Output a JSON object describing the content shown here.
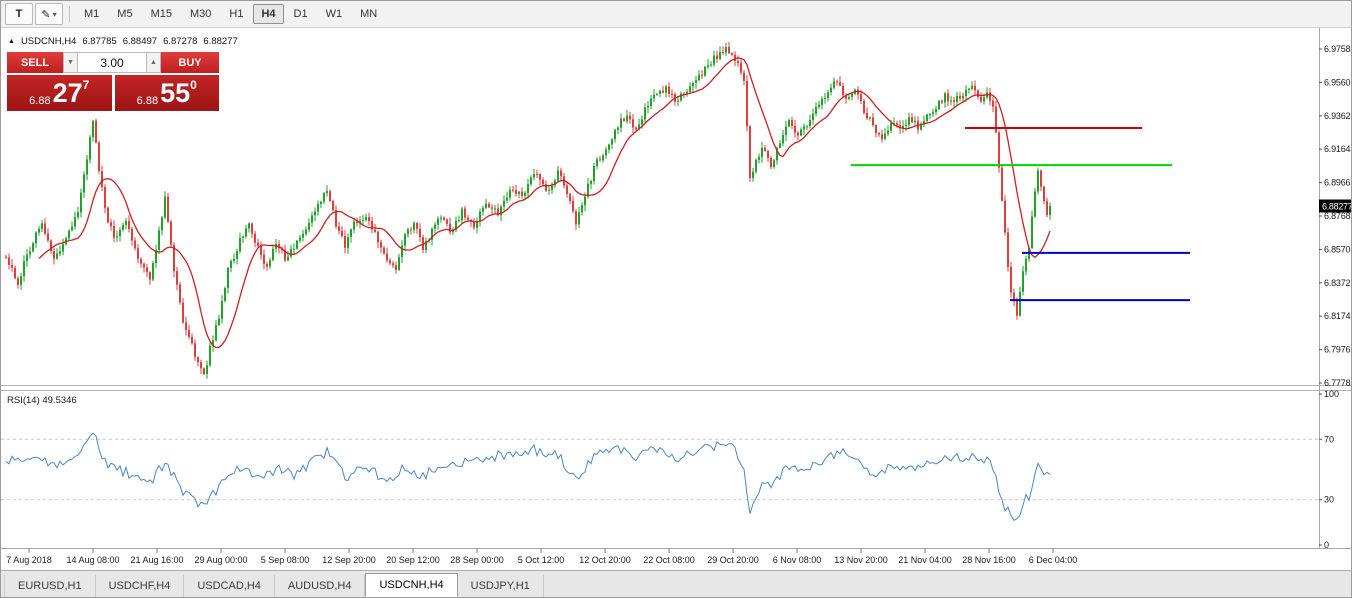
{
  "toolbar": {
    "text_tool_glyph": "T",
    "draw_tool_glyph": "✎",
    "dropdown_glyph": "▾",
    "timeframes": [
      "M1",
      "M5",
      "M15",
      "M30",
      "H1",
      "H4",
      "D1",
      "W1",
      "MN"
    ],
    "active_timeframe": "H4"
  },
  "chart": {
    "header": {
      "direction_arrow": "▲",
      "symbol": "USDCNH,H4",
      "open": "6.87785",
      "high": "6.88497",
      "low": "6.87278",
      "close": "6.88277"
    },
    "trade_panel": {
      "sell_label": "SELL",
      "buy_label": "BUY",
      "volume": "3.00",
      "spinner_down": "▼",
      "spinner_up": "▲",
      "sell_price": {
        "prefix": "6.88",
        "big": "27",
        "sup": "7"
      },
      "buy_price": {
        "prefix": "6.88",
        "big": "55",
        "sup": "0"
      }
    },
    "rsi_label": "RSI(14) 49.5346",
    "price_axis_current": "6.88277"
  },
  "chart_data": {
    "type": "candlestick",
    "symbol": "USDCNH",
    "timeframe": "H4",
    "current_ohlc": {
      "open": 6.87785,
      "high": 6.88497,
      "low": 6.87278,
      "close": 6.88277
    },
    "y_axis": {
      "ticks": [
        "6.97585",
        "6.95605",
        "6.93625",
        "6.91645",
        "6.89665",
        "6.87685",
        "6.85705",
        "6.83725",
        "6.81745",
        "6.79765",
        "6.77785"
      ]
    },
    "x_axis": {
      "labels": [
        "7 Aug 2018",
        "14 Aug 08:00",
        "21 Aug 16:00",
        "29 Aug 00:00",
        "5 Sep 08:00",
        "12 Sep 20:00",
        "20 Sep 12:00",
        "28 Sep 00:00",
        "5 Oct 12:00",
        "12 Oct 20:00",
        "22 Oct 08:00",
        "29 Oct 20:00",
        "6 Nov 08:00",
        "13 Nov 20:00",
        "21 Nov 04:00",
        "28 Nov 16:00",
        "6 Dec 04:00"
      ]
    },
    "candle_count": 349,
    "close_path_anchors": [
      [
        0,
        6.85
      ],
      [
        4,
        6.838
      ],
      [
        8,
        6.858
      ],
      [
        12,
        6.872
      ],
      [
        16,
        6.85
      ],
      [
        20,
        6.862
      ],
      [
        24,
        6.88
      ],
      [
        27,
        6.91
      ],
      [
        29,
        6.933
      ],
      [
        31,
        6.905
      ],
      [
        33,
        6.882
      ],
      [
        36,
        6.862
      ],
      [
        40,
        6.875
      ],
      [
        44,
        6.852
      ],
      [
        48,
        6.84
      ],
      [
        51,
        6.868
      ],
      [
        53,
        6.888
      ],
      [
        56,
        6.845
      ],
      [
        59,
        6.815
      ],
      [
        62,
        6.8
      ],
      [
        64,
        6.788
      ],
      [
        66,
        6.782
      ],
      [
        68,
        6.798
      ],
      [
        71,
        6.818
      ],
      [
        74,
        6.845
      ],
      [
        78,
        6.862
      ],
      [
        81,
        6.873
      ],
      [
        84,
        6.858
      ],
      [
        87,
        6.845
      ],
      [
        90,
        6.862
      ],
      [
        93,
        6.852
      ],
      [
        96,
        6.858
      ],
      [
        100,
        6.868
      ],
      [
        104,
        6.885
      ],
      [
        107,
        6.892
      ],
      [
        110,
        6.872
      ],
      [
        113,
        6.86
      ],
      [
        116,
        6.872
      ],
      [
        120,
        6.878
      ],
      [
        124,
        6.862
      ],
      [
        127,
        6.85
      ],
      [
        130,
        6.845
      ],
      [
        133,
        6.865
      ],
      [
        136,
        6.872
      ],
      [
        139,
        6.858
      ],
      [
        142,
        6.868
      ],
      [
        145,
        6.878
      ],
      [
        148,
        6.866
      ],
      [
        152,
        6.88
      ],
      [
        156,
        6.872
      ],
      [
        160,
        6.885
      ],
      [
        164,
        6.878
      ],
      [
        168,
        6.892
      ],
      [
        172,
        6.888
      ],
      [
        176,
        6.902
      ],
      [
        180,
        6.892
      ],
      [
        184,
        6.902
      ],
      [
        188,
        6.888
      ],
      [
        190,
        6.872
      ],
      [
        193,
        6.888
      ],
      [
        196,
        6.905
      ],
      [
        200,
        6.918
      ],
      [
        204,
        6.93
      ],
      [
        207,
        6.938
      ],
      [
        210,
        6.928
      ],
      [
        213,
        6.94
      ],
      [
        216,
        6.947
      ],
      [
        220,
        6.952
      ],
      [
        224,
        6.945
      ],
      [
        228,
        6.955
      ],
      [
        232,
        6.962
      ],
      [
        236,
        6.97
      ],
      [
        240,
        6.976
      ],
      [
        243,
        6.971
      ],
      [
        246,
        6.958
      ],
      [
        248,
        6.898
      ],
      [
        250,
        6.908
      ],
      [
        252,
        6.918
      ],
      [
        255,
        6.905
      ],
      [
        258,
        6.922
      ],
      [
        261,
        6.933
      ],
      [
        264,
        6.925
      ],
      [
        267,
        6.932
      ],
      [
        270,
        6.94
      ],
      [
        274,
        6.95
      ],
      [
        277,
        6.957
      ],
      [
        280,
        6.947
      ],
      [
        283,
        6.952
      ],
      [
        286,
        6.94
      ],
      [
        289,
        6.93
      ],
      [
        292,
        6.922
      ],
      [
        295,
        6.933
      ],
      [
        298,
        6.928
      ],
      [
        301,
        6.935
      ],
      [
        304,
        6.93
      ],
      [
        307,
        6.936
      ],
      [
        310,
        6.941
      ],
      [
        313,
        6.948
      ],
      [
        316,
        6.944
      ],
      [
        319,
        6.95
      ],
      [
        322,
        6.956
      ],
      [
        325,
        6.945
      ],
      [
        327,
        6.95
      ],
      [
        329,
        6.942
      ],
      [
        330,
        6.925
      ],
      [
        332,
        6.885
      ],
      [
        334,
        6.845
      ],
      [
        335,
        6.83
      ],
      [
        337,
        6.82
      ],
      [
        339,
        6.845
      ],
      [
        341,
        6.86
      ],
      [
        343,
        6.89
      ],
      [
        344,
        6.906
      ],
      [
        346,
        6.886
      ],
      [
        347,
        6.878
      ],
      [
        348,
        6.88277
      ]
    ],
    "moving_average": {
      "period": 12,
      "color": "#cc2020"
    },
    "horizontal_lines": [
      {
        "color": "#cc0000",
        "price": 6.929,
        "start_idx": 320,
        "end_idx": 379
      },
      {
        "color": "#00d200",
        "price": 6.907,
        "start_idx": 282,
        "end_idx": 389
      },
      {
        "color": "#0000cc",
        "price": 6.855,
        "start_idx": 339,
        "end_idx": 395
      },
      {
        "color": "#0000cc",
        "price": 6.827,
        "start_idx": 335,
        "end_idx": 395
      }
    ],
    "rsi": {
      "period": 14,
      "current": 49.5346,
      "levels": [
        "100",
        "70",
        "30",
        "0"
      ],
      "anchors": [
        [
          0,
          55
        ],
        [
          8,
          58
        ],
        [
          16,
          52
        ],
        [
          24,
          62
        ],
        [
          29,
          74
        ],
        [
          33,
          55
        ],
        [
          40,
          48
        ],
        [
          48,
          40
        ],
        [
          53,
          55
        ],
        [
          59,
          35
        ],
        [
          64,
          28
        ],
        [
          66,
          25
        ],
        [
          71,
          38
        ],
        [
          78,
          52
        ],
        [
          84,
          45
        ],
        [
          90,
          50
        ],
        [
          96,
          47
        ],
        [
          104,
          58
        ],
        [
          107,
          62
        ],
        [
          113,
          45
        ],
        [
          120,
          52
        ],
        [
          127,
          42
        ],
        [
          133,
          52
        ],
        [
          139,
          46
        ],
        [
          145,
          53
        ],
        [
          152,
          55
        ],
        [
          160,
          58
        ],
        [
          168,
          60
        ],
        [
          176,
          63
        ],
        [
          184,
          60
        ],
        [
          190,
          42
        ],
        [
          196,
          58
        ],
        [
          204,
          65
        ],
        [
          210,
          58
        ],
        [
          216,
          64
        ],
        [
          224,
          58
        ],
        [
          232,
          64
        ],
        [
          240,
          68
        ],
        [
          243,
          62
        ],
        [
          246,
          50
        ],
        [
          248,
          20
        ],
        [
          252,
          42
        ],
        [
          255,
          38
        ],
        [
          261,
          52
        ],
        [
          267,
          50
        ],
        [
          274,
          58
        ],
        [
          277,
          62
        ],
        [
          283,
          58
        ],
        [
          289,
          46
        ],
        [
          295,
          52
        ],
        [
          301,
          52
        ],
        [
          307,
          54
        ],
        [
          313,
          58
        ],
        [
          319,
          58
        ],
        [
          322,
          60
        ],
        [
          327,
          57
        ],
        [
          330,
          45
        ],
        [
          332,
          30
        ],
        [
          335,
          18
        ],
        [
          337,
          15
        ],
        [
          339,
          28
        ],
        [
          341,
          33
        ],
        [
          343,
          45
        ],
        [
          344,
          52
        ],
        [
          346,
          46
        ],
        [
          348,
          49.5
        ]
      ]
    }
  },
  "colors": {
    "up": "#1fa32a",
    "down": "#e23c3c",
    "ma": "#cc2020",
    "rsi": "#4a86c8",
    "badge_bg": "#000000",
    "badge_text": "#ffffff"
  },
  "tabs": {
    "items": [
      "EURUSD,H1",
      "USDCHF,H4",
      "USDCAD,H4",
      "AUDUSD,H4",
      "USDCNH,H4",
      "USDJPY,H1"
    ],
    "active": "USDCNH,H4"
  }
}
